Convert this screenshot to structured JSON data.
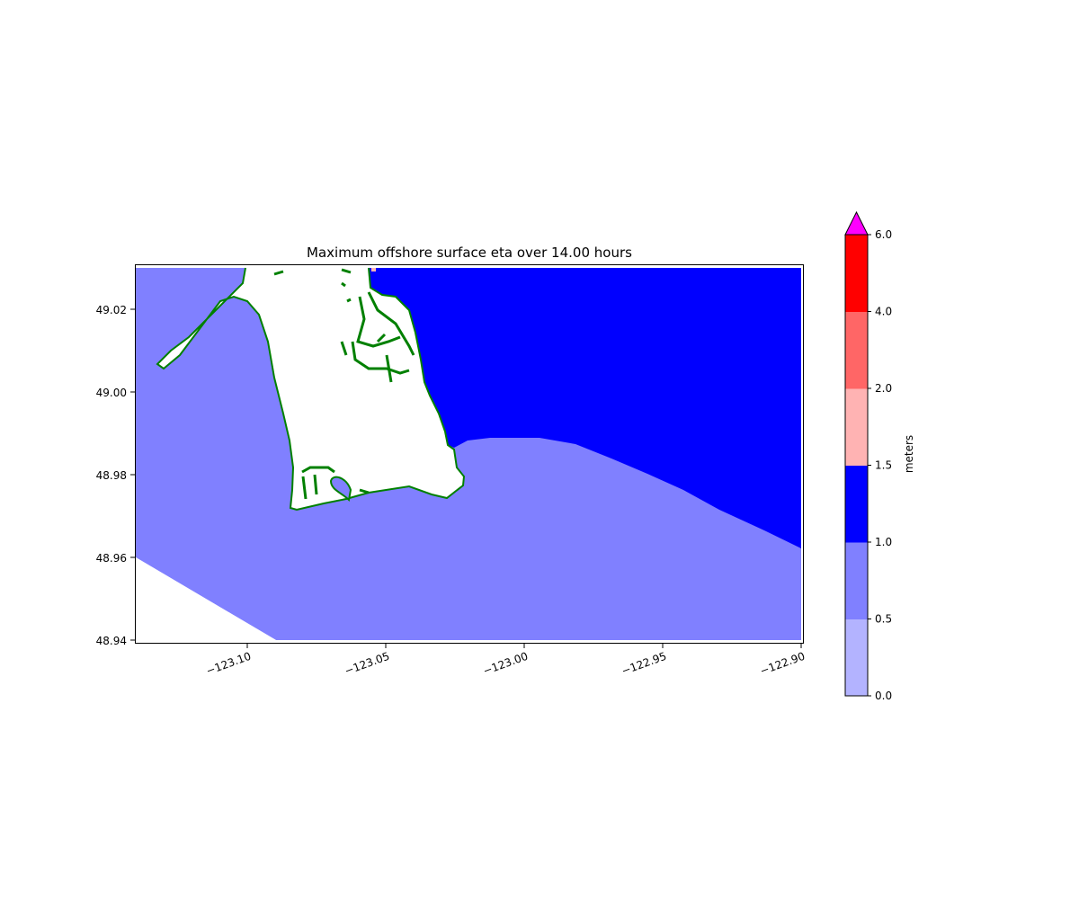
{
  "chart_data": {
    "type": "contourf-map",
    "title": "Maximum offshore surface eta over 14.00 hours",
    "x_ticks": [
      "−123.10",
      "−123.05",
      "−123.00",
      "−122.95",
      "−122.90"
    ],
    "x_tick_values": [
      -123.1,
      -123.05,
      -123.0,
      -122.95,
      -122.9
    ],
    "y_ticks": [
      "49.02",
      "49.00",
      "48.98",
      "48.96",
      "48.94"
    ],
    "y_tick_values": [
      49.02,
      49.0,
      48.98,
      48.96,
      48.94
    ],
    "xlim": [
      -123.1405,
      -122.8995
    ],
    "ylim": [
      48.9393,
      49.0309
    ],
    "colorbar": {
      "label": "meters",
      "levels": [
        0.0,
        0.5,
        1.0,
        1.5,
        2.0,
        4.0,
        6.0
      ],
      "tick_labels": [
        "0.0",
        "0.5",
        "1.0",
        "1.5",
        "2.0",
        "4.0",
        "6.0"
      ],
      "colors": [
        "#b3b3ff",
        "#8080ff",
        "#0000ff",
        "#ffb3b3",
        "#ff6666",
        "#ff0000"
      ],
      "extend_max_color": "#ff00ff"
    },
    "land_color": "#ffffff",
    "shoreline_color": "#008000"
  }
}
